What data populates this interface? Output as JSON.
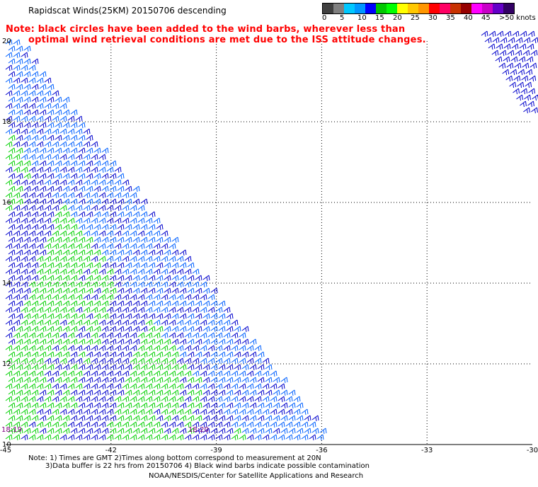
{
  "title": "Rapidscat Winds(25KM) 20150706 descending",
  "note_line1": "Note: black circles have been added to the wind barbs, wherever less than",
  "note_line2": "optimal wind retrieval conditions are met due to the ISS attitude changes.",
  "colorbar": {
    "colors": [
      "#404040",
      "#808080",
      "#00c8ff",
      "#0096ff",
      "#0000ff",
      "#00c800",
      "#00ff00",
      "#ffff00",
      "#ffc800",
      "#ff9600",
      "#ff0000",
      "#ff0064",
      "#c83200",
      "#960000",
      "#ff00ff",
      "#c800c8",
      "#6400c8",
      "#320064"
    ],
    "labels": [
      "0",
      "5",
      "10",
      "15",
      "20",
      "25",
      "30",
      "35",
      "40",
      "45",
      ">50 knots"
    ]
  },
  "map": {
    "lon_labels": [
      "-45",
      "-42",
      "-39",
      "-36",
      "-33",
      "-30"
    ],
    "lat_labels": [
      "20",
      "18",
      "16",
      "14",
      "12",
      "10"
    ],
    "pass_time_labels": [
      "18:19",
      "18:20"
    ]
  },
  "footer": {
    "line1": "Note: 1) Times are GMT 2)Times along bottom correspond to measurement at 20N",
    "line2": "3)Data buffer is 22 hrs from 20150706 4) Black wind barbs indicate possible contamination",
    "line3": "NOAA/NESDIS/Center for Satellite Applications and Research"
  }
}
